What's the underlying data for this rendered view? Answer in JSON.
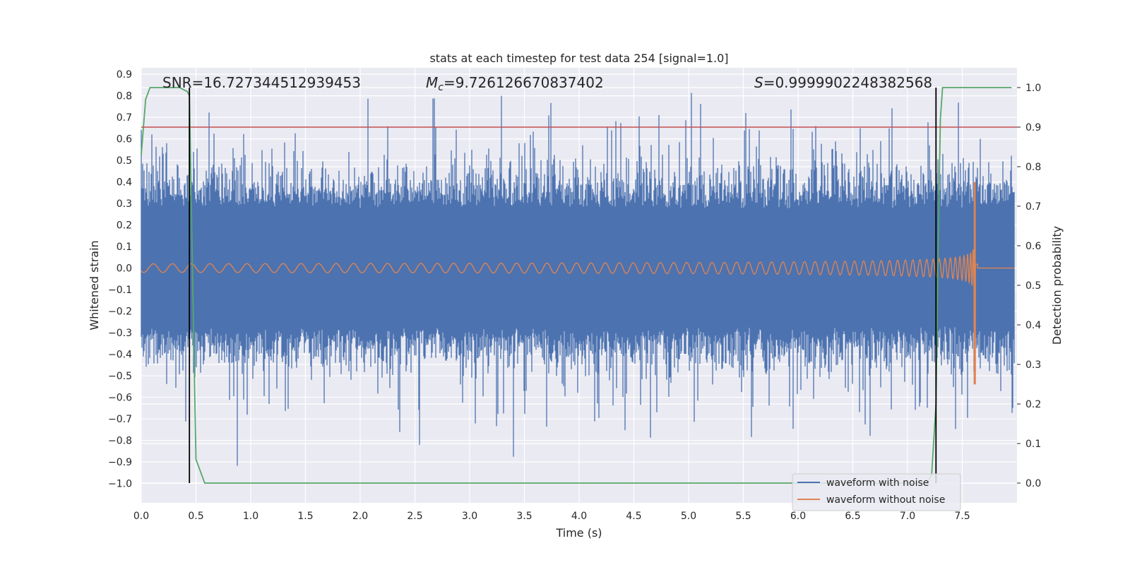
{
  "chart_data": {
    "type": "line",
    "title": "stats at each timestep for test data 254 [signal=1.0]",
    "xlabel": "Time (s)",
    "ylabel_left": "Whitened strain",
    "ylabel_right": "Detection probability",
    "xlim": [
      0.0,
      8.0
    ],
    "ylim_left": [
      -1.09,
      0.93
    ],
    "ylim_right": [
      -0.05,
      1.05
    ],
    "x_ticks": [
      "0.0",
      "0.5",
      "1.0",
      "1.5",
      "2.0",
      "2.5",
      "3.0",
      "3.5",
      "4.0",
      "4.5",
      "5.0",
      "5.5",
      "6.0",
      "6.5",
      "7.0",
      "7.5"
    ],
    "y_left_ticks": [
      "0.9",
      "0.8",
      "0.7",
      "0.6",
      "0.5",
      "0.4",
      "0.3",
      "0.2",
      "0.1",
      "0.0",
      "-0.1",
      "-0.2",
      "-0.3",
      "-0.4",
      "-0.5",
      "-0.6",
      "-0.7",
      "-0.8",
      "-0.9",
      "-1.0"
    ],
    "y_right_ticks": [
      "1.0",
      "0.9",
      "0.8",
      "0.7",
      "0.6",
      "0.5",
      "0.4",
      "0.3",
      "0.2",
      "0.1",
      "0.0"
    ],
    "annotations": {
      "snr_label": "SNR",
      "snr_value": "=16.727344512939453",
      "mc_symbol": "M",
      "mc_subscript": "c",
      "mc_value": "=9.726126670837402",
      "s_symbol": "S",
      "s_value": "=0.9999902248382568"
    },
    "threshold": {
      "value": 0.9,
      "axis": "right",
      "color": "#c44e52"
    },
    "vertical_markers": [
      0.44,
      7.26
    ],
    "series": [
      {
        "name": "waveform with noise",
        "color": "#4c72b0",
        "axis": "left",
        "typical_band": [
          -0.29,
          0.29
        ],
        "peak_max": 0.84,
        "peak_min": -1.0
      },
      {
        "name": "waveform without noise",
        "color": "#dd8452",
        "axis": "left",
        "amplitude_start": 0.02,
        "merger_time": 7.62,
        "merger_peak": 0.4,
        "merger_trough": -0.54
      },
      {
        "name": "detection probability",
        "color": "#55a868",
        "axis": "right",
        "in_legend": false,
        "x": [
          0.0,
          0.04,
          0.08,
          0.15,
          0.25,
          0.35,
          0.42,
          0.44,
          0.47,
          0.5,
          0.58,
          0.75,
          0.9,
          1.2,
          2.0,
          3.0,
          4.0,
          5.0,
          6.0,
          6.8,
          7.18,
          7.22,
          7.26,
          7.28,
          7.3,
          7.32,
          7.5,
          7.95
        ],
        "y": [
          0.83,
          0.97,
          1.0,
          1.0,
          1.0,
          1.0,
          0.99,
          0.98,
          0.5,
          0.06,
          0.0,
          0.0,
          0.0,
          0.0,
          0.0,
          0.0,
          0.0,
          0.0,
          0.0,
          0.0,
          0.0,
          0.02,
          0.2,
          0.6,
          0.92,
          1.0,
          1.0,
          1.0
        ]
      }
    ],
    "legend_position": "lower-right"
  }
}
